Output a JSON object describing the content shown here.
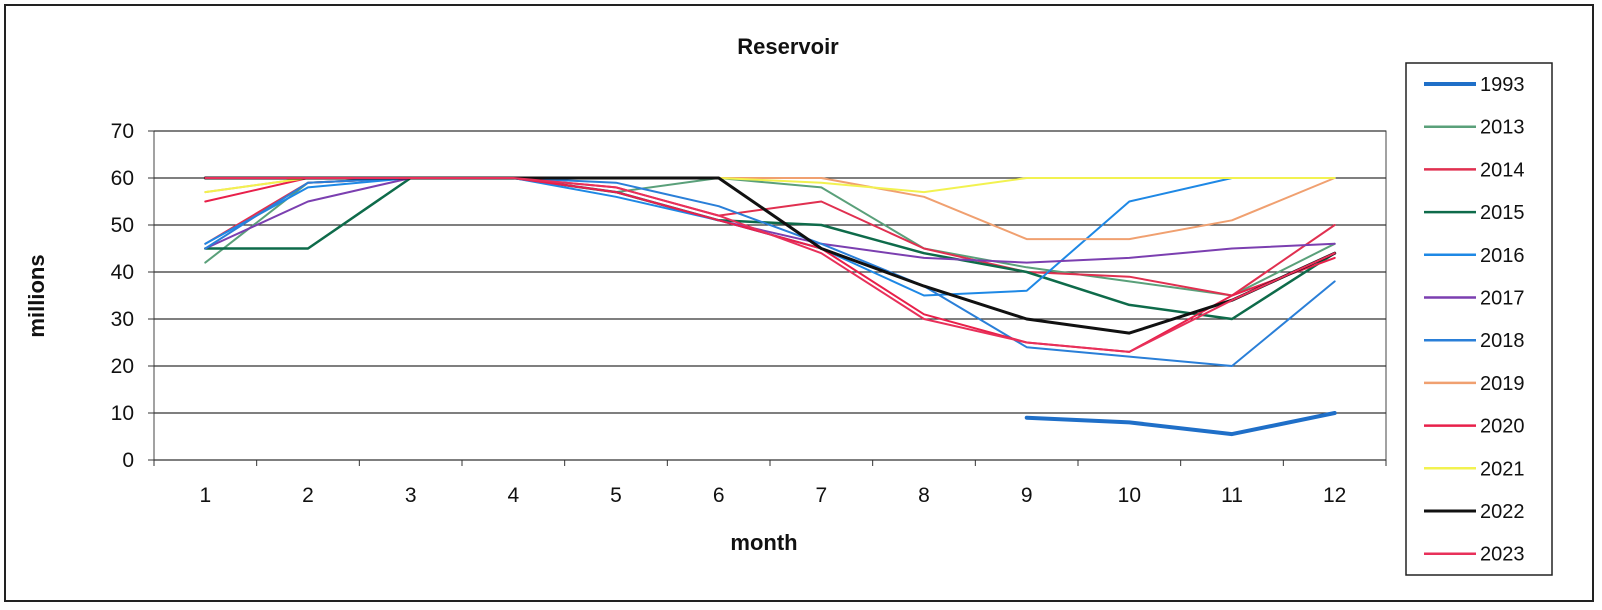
{
  "chart_data": {
    "type": "line",
    "title": "Reservoir",
    "xlabel": "month",
    "ylabel": "millions",
    "x": [
      1,
      2,
      3,
      4,
      5,
      6,
      7,
      8,
      9,
      10,
      11,
      12
    ],
    "ylim": [
      0,
      70
    ],
    "yticks": [
      0,
      10,
      20,
      30,
      40,
      50,
      60,
      70
    ],
    "grid": "horizontal",
    "legend_position": "right",
    "series": [
      {
        "name": "1993",
        "color": "#1f6fc8",
        "width": 4,
        "values": [
          null,
          null,
          null,
          null,
          null,
          null,
          null,
          null,
          9,
          8,
          5.5,
          10
        ]
      },
      {
        "name": "2013",
        "color": "#5aa07a",
        "width": 2,
        "values": [
          42,
          59,
          60,
          60,
          57,
          60,
          58,
          45,
          41,
          38,
          35,
          46
        ]
      },
      {
        "name": "2014",
        "color": "#e03050",
        "width": 2,
        "values": [
          46,
          59,
          60,
          60,
          58,
          52,
          55,
          45,
          40,
          39,
          35,
          50
        ]
      },
      {
        "name": "2015",
        "color": "#0e6b4a",
        "width": 2.5,
        "values": [
          45,
          45,
          60,
          60,
          57,
          51,
          50,
          44,
          40,
          33,
          30,
          44
        ]
      },
      {
        "name": "2016",
        "color": "#1e88e5",
        "width": 2,
        "values": [
          46,
          58,
          60,
          60,
          56,
          51,
          45,
          35,
          36,
          55,
          60,
          60
        ]
      },
      {
        "name": "2017",
        "color": "#7b3fb0",
        "width": 2,
        "values": [
          45,
          55,
          60,
          60,
          57,
          51,
          46,
          43,
          42,
          43,
          45,
          46
        ]
      },
      {
        "name": "2018",
        "color": "#2a7fd8",
        "width": 2,
        "values": [
          45,
          59,
          60,
          60,
          59,
          54,
          46,
          37,
          24,
          22,
          20,
          38
        ]
      },
      {
        "name": "2019",
        "color": "#f0a070",
        "width": 2,
        "values": [
          57,
          60,
          60,
          60,
          60,
          60,
          60,
          56,
          47,
          47,
          51,
          60
        ]
      },
      {
        "name": "2020",
        "color": "#e8204a",
        "width": 2,
        "values": [
          55,
          60,
          60,
          60,
          57,
          51,
          45,
          31,
          25,
          23,
          35,
          43
        ]
      },
      {
        "name": "2021",
        "color": "#f2f250",
        "width": 2,
        "values": [
          57,
          60,
          60,
          60,
          60,
          60,
          59,
          57,
          60,
          60,
          60,
          60
        ]
      },
      {
        "name": "2022",
        "color": "#111111",
        "width": 3,
        "values": [
          60,
          60,
          60,
          60,
          60,
          60,
          45,
          37,
          30,
          27,
          34,
          44
        ]
      },
      {
        "name": "2023",
        "color": "#e8305a",
        "width": 2,
        "values": [
          60,
          60,
          60,
          60,
          58,
          52,
          44,
          30,
          25,
          23,
          34,
          44
        ]
      }
    ]
  }
}
